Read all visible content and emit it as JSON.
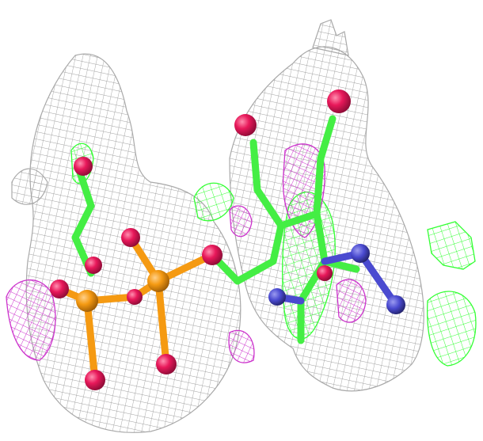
{
  "figure": {
    "background": "#ffffff",
    "colors": {
      "density_mesh": "#9a9a9a",
      "positive_difference_mesh": "#33ff33",
      "negative_difference_mesh": "#cc33cc",
      "carbon": "#44ee44",
      "oxygen": "#e8185a",
      "phosphorus": "#f59a12",
      "nitrogen": "#4a4ad0"
    },
    "elements_shown": [
      "electron-density-mesh",
      "positive-difference-density",
      "negative-difference-density",
      "ball-and-stick-ligand"
    ]
  }
}
